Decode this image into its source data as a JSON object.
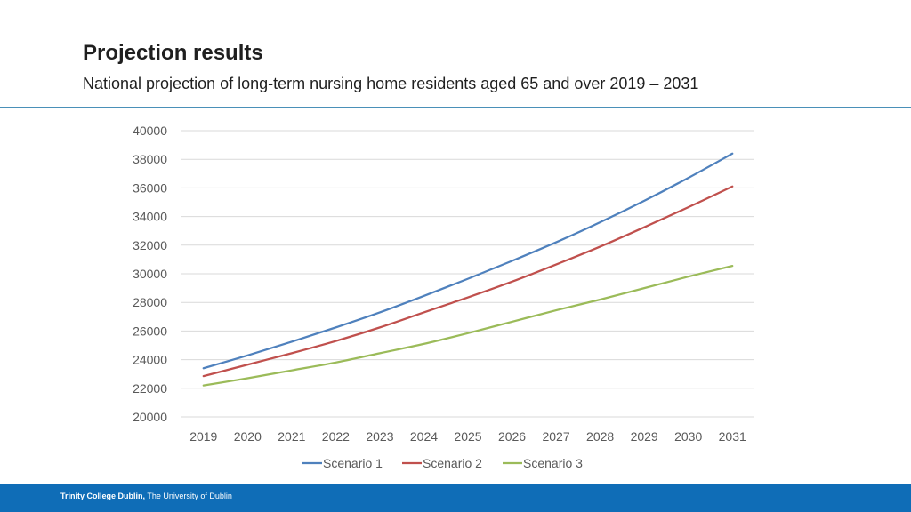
{
  "slide": {
    "title": "Projection results",
    "subtitle": "National projection of long-term nursing home residents aged 65 and over  2019 – 2031"
  },
  "footer": {
    "institution": "Trinity College Dublin,",
    "university": " The University of Dublin"
  },
  "colors": {
    "header_rule": "#4a90b8",
    "footer_bar": "#0f6db7",
    "gridline": "#d9d9d9",
    "tick_text": "#595959"
  },
  "chart_data": {
    "type": "line",
    "title": "",
    "xlabel": "",
    "ylabel": "",
    "ylim": [
      20000,
      40000
    ],
    "yticks": [
      "20000",
      "22000",
      "24000",
      "26000",
      "28000",
      "30000",
      "32000",
      "34000",
      "36000",
      "38000",
      "40000"
    ],
    "categories": [
      "2019",
      "2020",
      "2021",
      "2022",
      "2023",
      "2024",
      "2025",
      "2026",
      "2027",
      "2028",
      "2029",
      "2030",
      "2031"
    ],
    "grid": "horizontal",
    "legend_position": "bottom",
    "series": [
      {
        "name": "Scenario 1",
        "color": "#4f81bd",
        "values": [
          23400,
          24300,
          25250,
          26250,
          27300,
          28450,
          29650,
          30900,
          32200,
          33600,
          35100,
          36700,
          38400
        ]
      },
      {
        "name": "Scenario 2",
        "color": "#c0504d",
        "values": [
          22850,
          23650,
          24450,
          25300,
          26250,
          27300,
          28350,
          29450,
          30650,
          31900,
          33250,
          34650,
          36100
        ]
      },
      {
        "name": "Scenario 3",
        "color": "#9bbb59",
        "values": [
          22200,
          22700,
          23250,
          23800,
          24450,
          25100,
          25850,
          26650,
          27450,
          28200,
          29000,
          29800,
          30550
        ]
      }
    ]
  }
}
